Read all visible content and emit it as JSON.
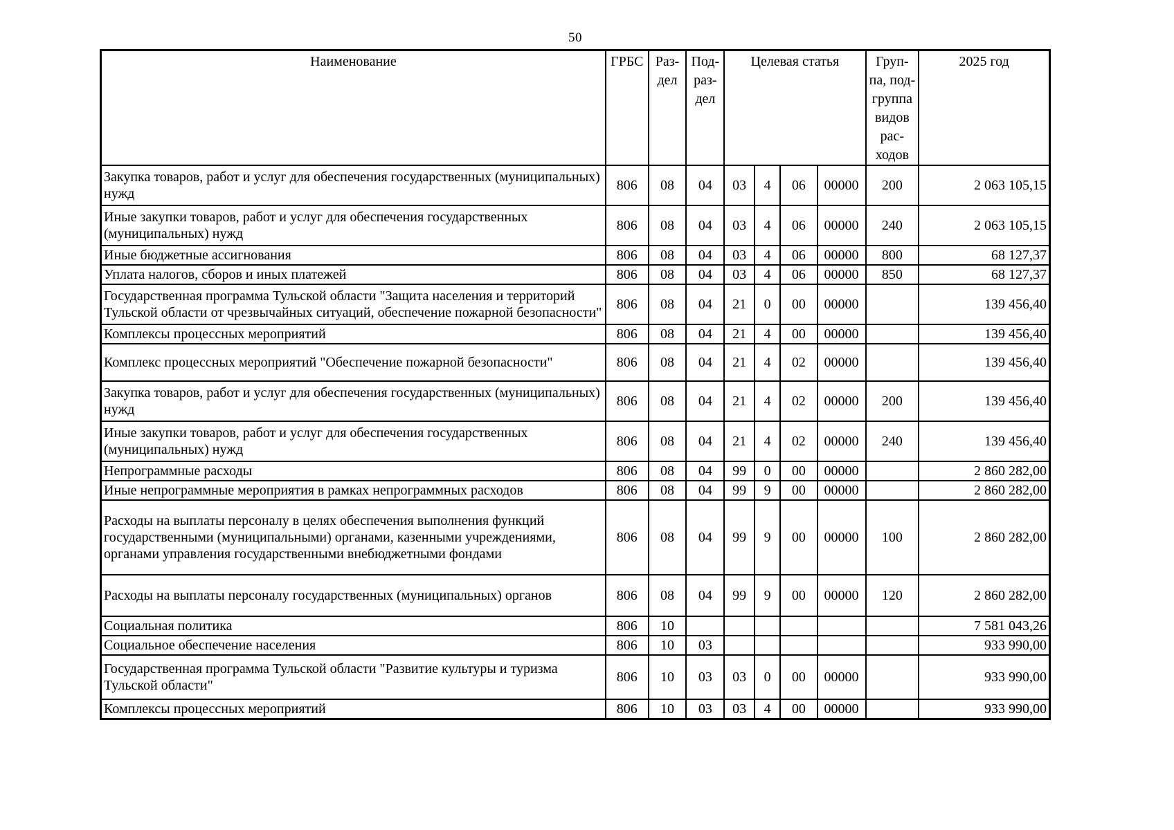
{
  "page": {
    "number": "50"
  },
  "table": {
    "headers": {
      "name": "Наименование",
      "grbs": "ГРБС",
      "razdel": "Раз-\nдел",
      "podrazdel": "Под-\nраз-\nдел",
      "target_article": "Целевая статья",
      "vr_group": "Груп-\nпа, под-\nгруппа\nвидов\nрас-\nходов",
      "year": "2025 год"
    },
    "rows": [
      {
        "name": "Закупка товаров, работ и услуг для обеспечения государственных (муниципальных) нужд",
        "grbs": "806",
        "rz": "08",
        "pr": "04",
        "cs": [
          "03",
          "4",
          "06",
          "00000"
        ],
        "vr": "200",
        "amount": "2 063 105,15"
      },
      {
        "name": "Иные закупки товаров, работ и услуг для обеспечения государственных (муниципальных) нужд",
        "grbs": "806",
        "rz": "08",
        "pr": "04",
        "cs": [
          "03",
          "4",
          "06",
          "00000"
        ],
        "vr": "240",
        "amount": "2 063 105,15"
      },
      {
        "name": "Иные бюджетные ассигнования",
        "grbs": "806",
        "rz": "08",
        "pr": "04",
        "cs": [
          "03",
          "4",
          "06",
          "00000"
        ],
        "vr": "800",
        "amount": "68 127,37"
      },
      {
        "name": "Уплата налогов, сборов и иных платежей",
        "grbs": "806",
        "rz": "08",
        "pr": "04",
        "cs": [
          "03",
          "4",
          "06",
          "00000"
        ],
        "vr": "850",
        "amount": "68 127,37"
      },
      {
        "name": "Государственная программа Тульской области \"Защита населения и территорий Тульской области от чрезвычайных ситуаций, обеспечение пожарной безопасности\"",
        "grbs": "806",
        "rz": "08",
        "pr": "04",
        "cs": [
          "21",
          "0",
          "00",
          "00000"
        ],
        "vr": "",
        "amount": "139 456,40"
      },
      {
        "name": "Комплексы процессных мероприятий",
        "grbs": "806",
        "rz": "08",
        "pr": "04",
        "cs": [
          "21",
          "4",
          "00",
          "00000"
        ],
        "vr": "",
        "amount": "139 456,40"
      },
      {
        "name": "Комплекс процессных мероприятий \"Обеспечение пожарной безопасности\"",
        "grbs": "806",
        "rz": "08",
        "pr": "04",
        "cs": [
          "21",
          "4",
          "02",
          "00000"
        ],
        "vr": "",
        "amount": "139 456,40"
      },
      {
        "name": "Закупка товаров, работ и услуг для обеспечения государственных (муниципальных) нужд",
        "grbs": "806",
        "rz": "08",
        "pr": "04",
        "cs": [
          "21",
          "4",
          "02",
          "00000"
        ],
        "vr": "200",
        "amount": "139 456,40"
      },
      {
        "name": "Иные закупки товаров, работ и услуг для обеспечения государственных (муниципальных) нужд",
        "grbs": "806",
        "rz": "08",
        "pr": "04",
        "cs": [
          "21",
          "4",
          "02",
          "00000"
        ],
        "vr": "240",
        "amount": "139 456,40"
      },
      {
        "name": "Непрограммные расходы",
        "grbs": "806",
        "rz": "08",
        "pr": "04",
        "cs": [
          "99",
          "0",
          "00",
          "00000"
        ],
        "vr": "",
        "amount": "2 860 282,00"
      },
      {
        "name": "Иные непрограммные мероприятия в рамках непрограммных расходов",
        "grbs": "806",
        "rz": "08",
        "pr": "04",
        "cs": [
          "99",
          "9",
          "00",
          "00000"
        ],
        "vr": "",
        "amount": "2 860 282,00"
      },
      {
        "name": "Расходы на выплаты персоналу в целях обеспечения выполнения функций государственными (муниципальными) органами, казенными учреждениями, органами управления государственными внебюджетными фондами",
        "grbs": "806",
        "rz": "08",
        "pr": "04",
        "cs": [
          "99",
          "9",
          "00",
          "00000"
        ],
        "vr": "100",
        "amount": "2 860 282,00"
      },
      {
        "name": "Расходы на выплаты персоналу государственных (муниципальных) органов",
        "grbs": "806",
        "rz": "08",
        "pr": "04",
        "cs": [
          "99",
          "9",
          "00",
          "00000"
        ],
        "vr": "120",
        "amount": "2 860 282,00"
      },
      {
        "name": "Социальная политика",
        "grbs": "806",
        "rz": "10",
        "pr": "",
        "cs": [
          "",
          "",
          "",
          ""
        ],
        "vr": "",
        "amount": "7 581 043,26"
      },
      {
        "name": "Социальное обеспечение населения",
        "grbs": "806",
        "rz": "10",
        "pr": "03",
        "cs": [
          "",
          "",
          "",
          ""
        ],
        "vr": "",
        "amount": "933 990,00"
      },
      {
        "name": "Государственная программа Тульской области \"Развитие культуры и туризма Тульской области\"",
        "grbs": "806",
        "rz": "10",
        "pr": "03",
        "cs": [
          "03",
          "0",
          "00",
          "00000"
        ],
        "vr": "",
        "amount": "933 990,00"
      },
      {
        "name": "Комплексы процессных мероприятий",
        "grbs": "806",
        "rz": "10",
        "pr": "03",
        "cs": [
          "03",
          "4",
          "00",
          "00000"
        ],
        "vr": "",
        "amount": "933 990,00"
      }
    ]
  }
}
